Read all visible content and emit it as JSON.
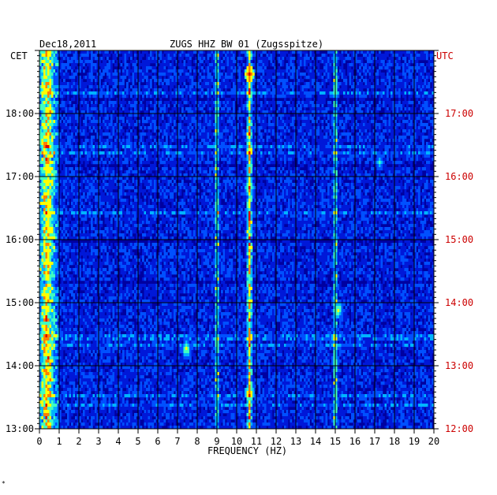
{
  "header": {
    "date": "Dec18,2011",
    "station": "ZUGS HHZ BW 01 (Zugsspitze)",
    "left_zone": "CET",
    "right_zone": "UTC"
  },
  "footer": {
    "mark": "*"
  },
  "chart_data": {
    "type": "heatmap",
    "title": "ZUGS HHZ BW 01 (Zugsspitze)",
    "xlabel": "FREQUENCY (HZ)",
    "ylabel": "",
    "xlim": [
      0,
      20
    ],
    "x_ticks": [
      "0",
      "1",
      "2",
      "3",
      "4",
      "5",
      "6",
      "7",
      "8",
      "9",
      "10",
      "11",
      "12",
      "13",
      "14",
      "15",
      "16",
      "17",
      "18",
      "19",
      "20"
    ],
    "y_ticks_cet": [
      "13:00",
      "14:00",
      "15:00",
      "16:00",
      "17:00",
      "18:00"
    ],
    "y_ticks_utc": [
      "12:00",
      "13:00",
      "14:00",
      "15:00",
      "16:00",
      "17:00"
    ],
    "ylim_cet_hours": [
      13.0,
      19.0
    ],
    "grid": true,
    "colormap": [
      "#0000a0",
      "#0018d8",
      "#0050ff",
      "#00b4ff",
      "#40ffc0",
      "#ffff00",
      "#ff8000",
      "#e00000"
    ],
    "spectral_lines_hz": [
      0.4,
      9.0,
      10.6,
      10.7,
      15.0
    ],
    "events": [
      {
        "freq_hz": 10.6,
        "time_cet": "18:39",
        "level": 7
      },
      {
        "freq_hz": 10.6,
        "time_cet": "16:51",
        "level": 5
      },
      {
        "freq_hz": 15.1,
        "time_cet": "14:55",
        "level": 5
      },
      {
        "freq_hz": 10.6,
        "time_cet": "13:35",
        "level": 6
      },
      {
        "freq_hz": 7.4,
        "time_cet": "14:17",
        "level": 5
      },
      {
        "freq_hz": 17.2,
        "time_cet": "17:15",
        "level": 4
      }
    ]
  }
}
